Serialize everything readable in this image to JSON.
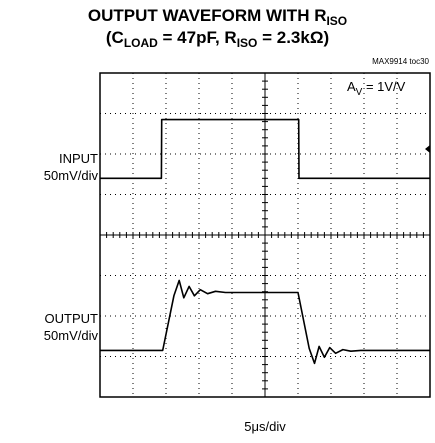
{
  "chart_data": {
    "type": "line",
    "title_line1_pre": "OUTPUT WAVEFORM WITH R",
    "title_line1_sub": "ISO",
    "title_line2_parts": [
      {
        "t": "(C",
        "sub": false
      },
      {
        "t": "LOAD",
        "sub": true
      },
      {
        "t": " = 47pF, R",
        "sub": false
      },
      {
        "t": "ISO",
        "sub": true
      },
      {
        "t": " = 2.3kΩ)",
        "sub": false
      }
    ],
    "note": "MAX9914 toc30",
    "xlabel": "5μs/div",
    "annotation_pre": "A",
    "annotation_sub": "V",
    "annotation_post": " = 1V/V",
    "x_divisions": 10,
    "y_divisions": 8,
    "xlim": [
      0,
      50
    ],
    "channels": [
      {
        "name_line1": "INPUT",
        "name_line2": "50mV/div",
        "baseline_div": 5.4,
        "high_div": 6.85,
        "x": [
          0,
          9.3,
          9.35,
          30.1,
          30.15,
          50
        ],
        "level_div": [
          5.4,
          5.4,
          6.85,
          6.85,
          5.4,
          5.4
        ]
      },
      {
        "name_line1": "OUTPUT",
        "name_line2": "50mV/div",
        "x": [
          0,
          9.5,
          11.2,
          12.0,
          12.7,
          13.5,
          14.3,
          15.2,
          16.3,
          17.5,
          19,
          30.0,
          31.7,
          32.5,
          33.2,
          34.0,
          34.8,
          35.7,
          36.8,
          38,
          39.5,
          50
        ],
        "level_div": [
          1.15,
          1.15,
          2.5,
          2.88,
          2.45,
          2.73,
          2.5,
          2.65,
          2.55,
          2.61,
          2.58,
          2.58,
          1.2,
          0.83,
          1.25,
          0.98,
          1.22,
          1.08,
          1.17,
          1.13,
          1.15,
          1.15
        ]
      }
    ]
  }
}
